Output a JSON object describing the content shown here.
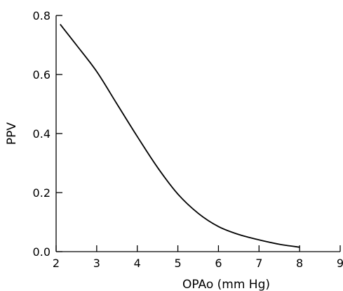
{
  "chart_data": {
    "type": "line",
    "title": "",
    "xlabel": "OPAo (mm Hg)",
    "ylabel": "PPV",
    "xlim": [
      2,
      9
    ],
    "ylim": [
      0.0,
      0.8
    ],
    "x_ticks": [
      "2",
      "3",
      "4",
      "5",
      "6",
      "7",
      "8",
      "9"
    ],
    "y_ticks": [
      "0.0",
      "0.2",
      "0.4",
      "0.6",
      "0.8"
    ],
    "grid": false,
    "legend": "none",
    "line_color": "#000000",
    "series": [
      {
        "x": [
          2.1,
          2.5,
          3.0,
          3.5,
          4.0,
          4.5,
          5.0,
          5.5,
          6.0,
          6.5,
          7.0,
          7.5,
          8.0
        ],
        "y": [
          0.77,
          0.7,
          0.61,
          0.5,
          0.39,
          0.285,
          0.195,
          0.13,
          0.085,
          0.058,
          0.04,
          0.025,
          0.015
        ]
      }
    ]
  }
}
